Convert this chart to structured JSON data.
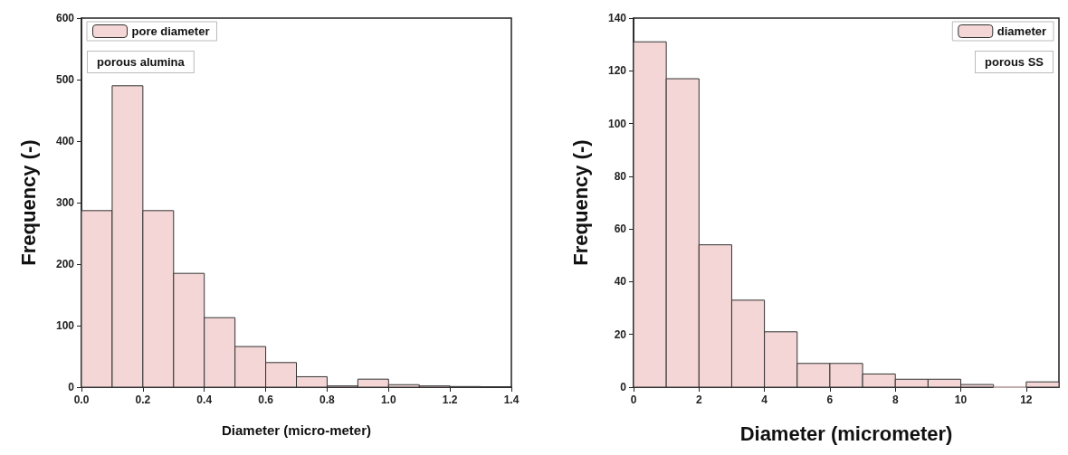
{
  "chart_data": [
    {
      "type": "histogram",
      "xlabel": "Diameter (micro-meter)",
      "ylabel": "Frequency (-)",
      "bins": [
        0,
        0.1,
        0.2,
        0.3,
        0.4,
        0.5,
        0.6,
        0.7,
        0.8,
        0.9,
        1.0,
        1.1,
        1.2,
        1.3
      ],
      "series": [
        {
          "name": "pore diameter",
          "color": "#f4d6d6",
          "values": [
            287,
            490,
            287,
            185,
            113,
            66,
            40,
            17,
            2,
            13,
            4,
            2,
            1
          ]
        }
      ],
      "xlim": [
        0,
        1.4
      ],
      "xticks": [
        {
          "value": 0,
          "label": "0.0"
        },
        0.2,
        0.4,
        0.6,
        0.8,
        {
          "value": 1,
          "label": "1.0"
        },
        1.2,
        1.4
      ],
      "ylim": [
        0,
        600
      ],
      "yticks": [
        0,
        100,
        200,
        300,
        400,
        500,
        600
      ],
      "annotations": [
        "porous alumina"
      ],
      "legend": "top left",
      "grid": false
    },
    {
      "type": "histogram",
      "xlabel": "Diameter (micrometer)",
      "ylabel": "Frequency (-)",
      "bins": [
        0,
        1,
        2,
        3,
        4,
        5,
        6,
        7,
        8,
        9,
        10,
        11,
        12,
        13
      ],
      "series": [
        {
          "name": "diameter",
          "color": "#f4d6d6",
          "values": [
            131,
            117,
            54,
            33,
            21,
            9,
            9,
            5,
            3,
            3,
            1,
            0,
            2
          ]
        }
      ],
      "xlim": [
        0,
        13
      ],
      "xticks": [
        0,
        2,
        4,
        6,
        8,
        10,
        12
      ],
      "ylim": [
        0,
        140
      ],
      "yticks": [
        0,
        20,
        40,
        60,
        80,
        100,
        120,
        140
      ],
      "annotations": [
        "porous SS"
      ],
      "legend": "top right",
      "grid": false
    }
  ]
}
